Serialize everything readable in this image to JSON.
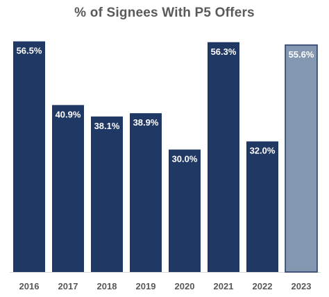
{
  "chart_data": {
    "type": "bar",
    "title": "% of Signees With P5 Offers",
    "categories": [
      "2016",
      "2017",
      "2018",
      "2019",
      "2020",
      "2021",
      "2022",
      "2023"
    ],
    "values": [
      56.5,
      40.9,
      38.1,
      38.9,
      30.0,
      56.3,
      32.0,
      55.6
    ],
    "data_labels": [
      "56.5%",
      "40.9%",
      "38.1%",
      "38.9%",
      "30.0%",
      "56.3%",
      "32.0%",
      "55.6%"
    ],
    "ylim": [
      0,
      60
    ],
    "grid": false,
    "legend": "none",
    "colors": {
      "bar": "#1f3864",
      "bar_highlight": "#8497b0",
      "bar_highlight_border": "#1f3864",
      "axis": "#d9d9d9",
      "tick_label": "#595959",
      "data_label": "#ffffff"
    },
    "highlight_index": 7
  }
}
